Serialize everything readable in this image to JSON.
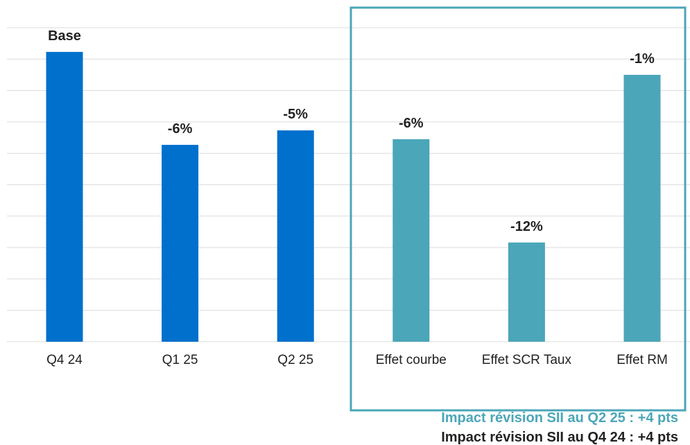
{
  "chart_data": {
    "type": "bar",
    "categories": [
      "Q4 24",
      "Q1 25",
      "Q2 25",
      "Effet courbe",
      "Effet SCR Taux",
      "Effet RM"
    ],
    "values": [
      9.23,
      6.27,
      6.73,
      6.45,
      3.16,
      8.5
    ],
    "bar_labels": [
      "Base",
      "-6%",
      "-5%",
      "-6%",
      "-12%",
      "-1%"
    ],
    "colors": [
      "#0070cd",
      "#0070cd",
      "#0070cd",
      "#4aa6b8",
      "#4aa6b8",
      "#4aa6b8"
    ],
    "ylim": [
      0,
      10
    ],
    "yticks": [
      0,
      1,
      2,
      3,
      4,
      5,
      6,
      7,
      8,
      9,
      10
    ],
    "grid": true,
    "annotations": [
      {
        "text": "Impact révision SII au Q2 25 : +4 pts",
        "color": "#4aa6b8"
      },
      {
        "text": "Impact révision SII au Q4 24 : +4 pts",
        "color": "#222222"
      }
    ]
  }
}
